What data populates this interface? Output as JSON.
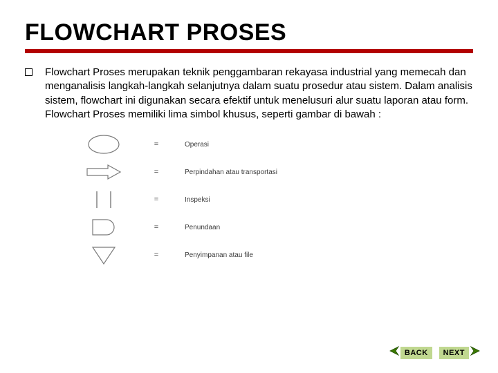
{
  "title": "FLOWCHART PROSES",
  "underline_color": "#b30000",
  "body_text": "Flowchart Proses merupakan teknik penggambaran rekayasa industrial yang memecah dan menganalisis langkah-langkah selanjutnya dalam suatu prosedur atau sistem. Dalam analisis sistem, flowchart ini digunakan secara efektif untuk menelusuri alur suatu laporan atau form. Flowchart Proses memiliki lima simbol khusus, seperti gambar di bawah :",
  "bullet_border": "#000000",
  "symbols": {
    "equals": "=",
    "shape_stroke": "#7a7a7a",
    "label_color": "#3a3a3a",
    "rows": [
      {
        "shape": "ellipse",
        "label": "Operasi"
      },
      {
        "shape": "arrow-right",
        "label": "Perpindahan atau transportasi"
      },
      {
        "shape": "parallel-lines",
        "label": "Inspeksi"
      },
      {
        "shape": "d-shape",
        "label": "Penundaan"
      },
      {
        "shape": "triangle-down",
        "label": "Penyimpanan atau file"
      }
    ]
  },
  "nav": {
    "back": {
      "label": "BACK",
      "bg": "#c0d890",
      "arrow_fill": "#3b7a00",
      "arrow_stroke": "#1f4d00"
    },
    "next": {
      "label": "NEXT",
      "bg": "#c0d890",
      "arrow_fill": "#3b7a00",
      "arrow_stroke": "#1f4d00"
    }
  },
  "styles": {
    "title_fontsize": 34,
    "body_fontsize": 15,
    "symbol_label_fontsize": 10,
    "nav_label_fontsize": 11,
    "background": "#ffffff"
  }
}
